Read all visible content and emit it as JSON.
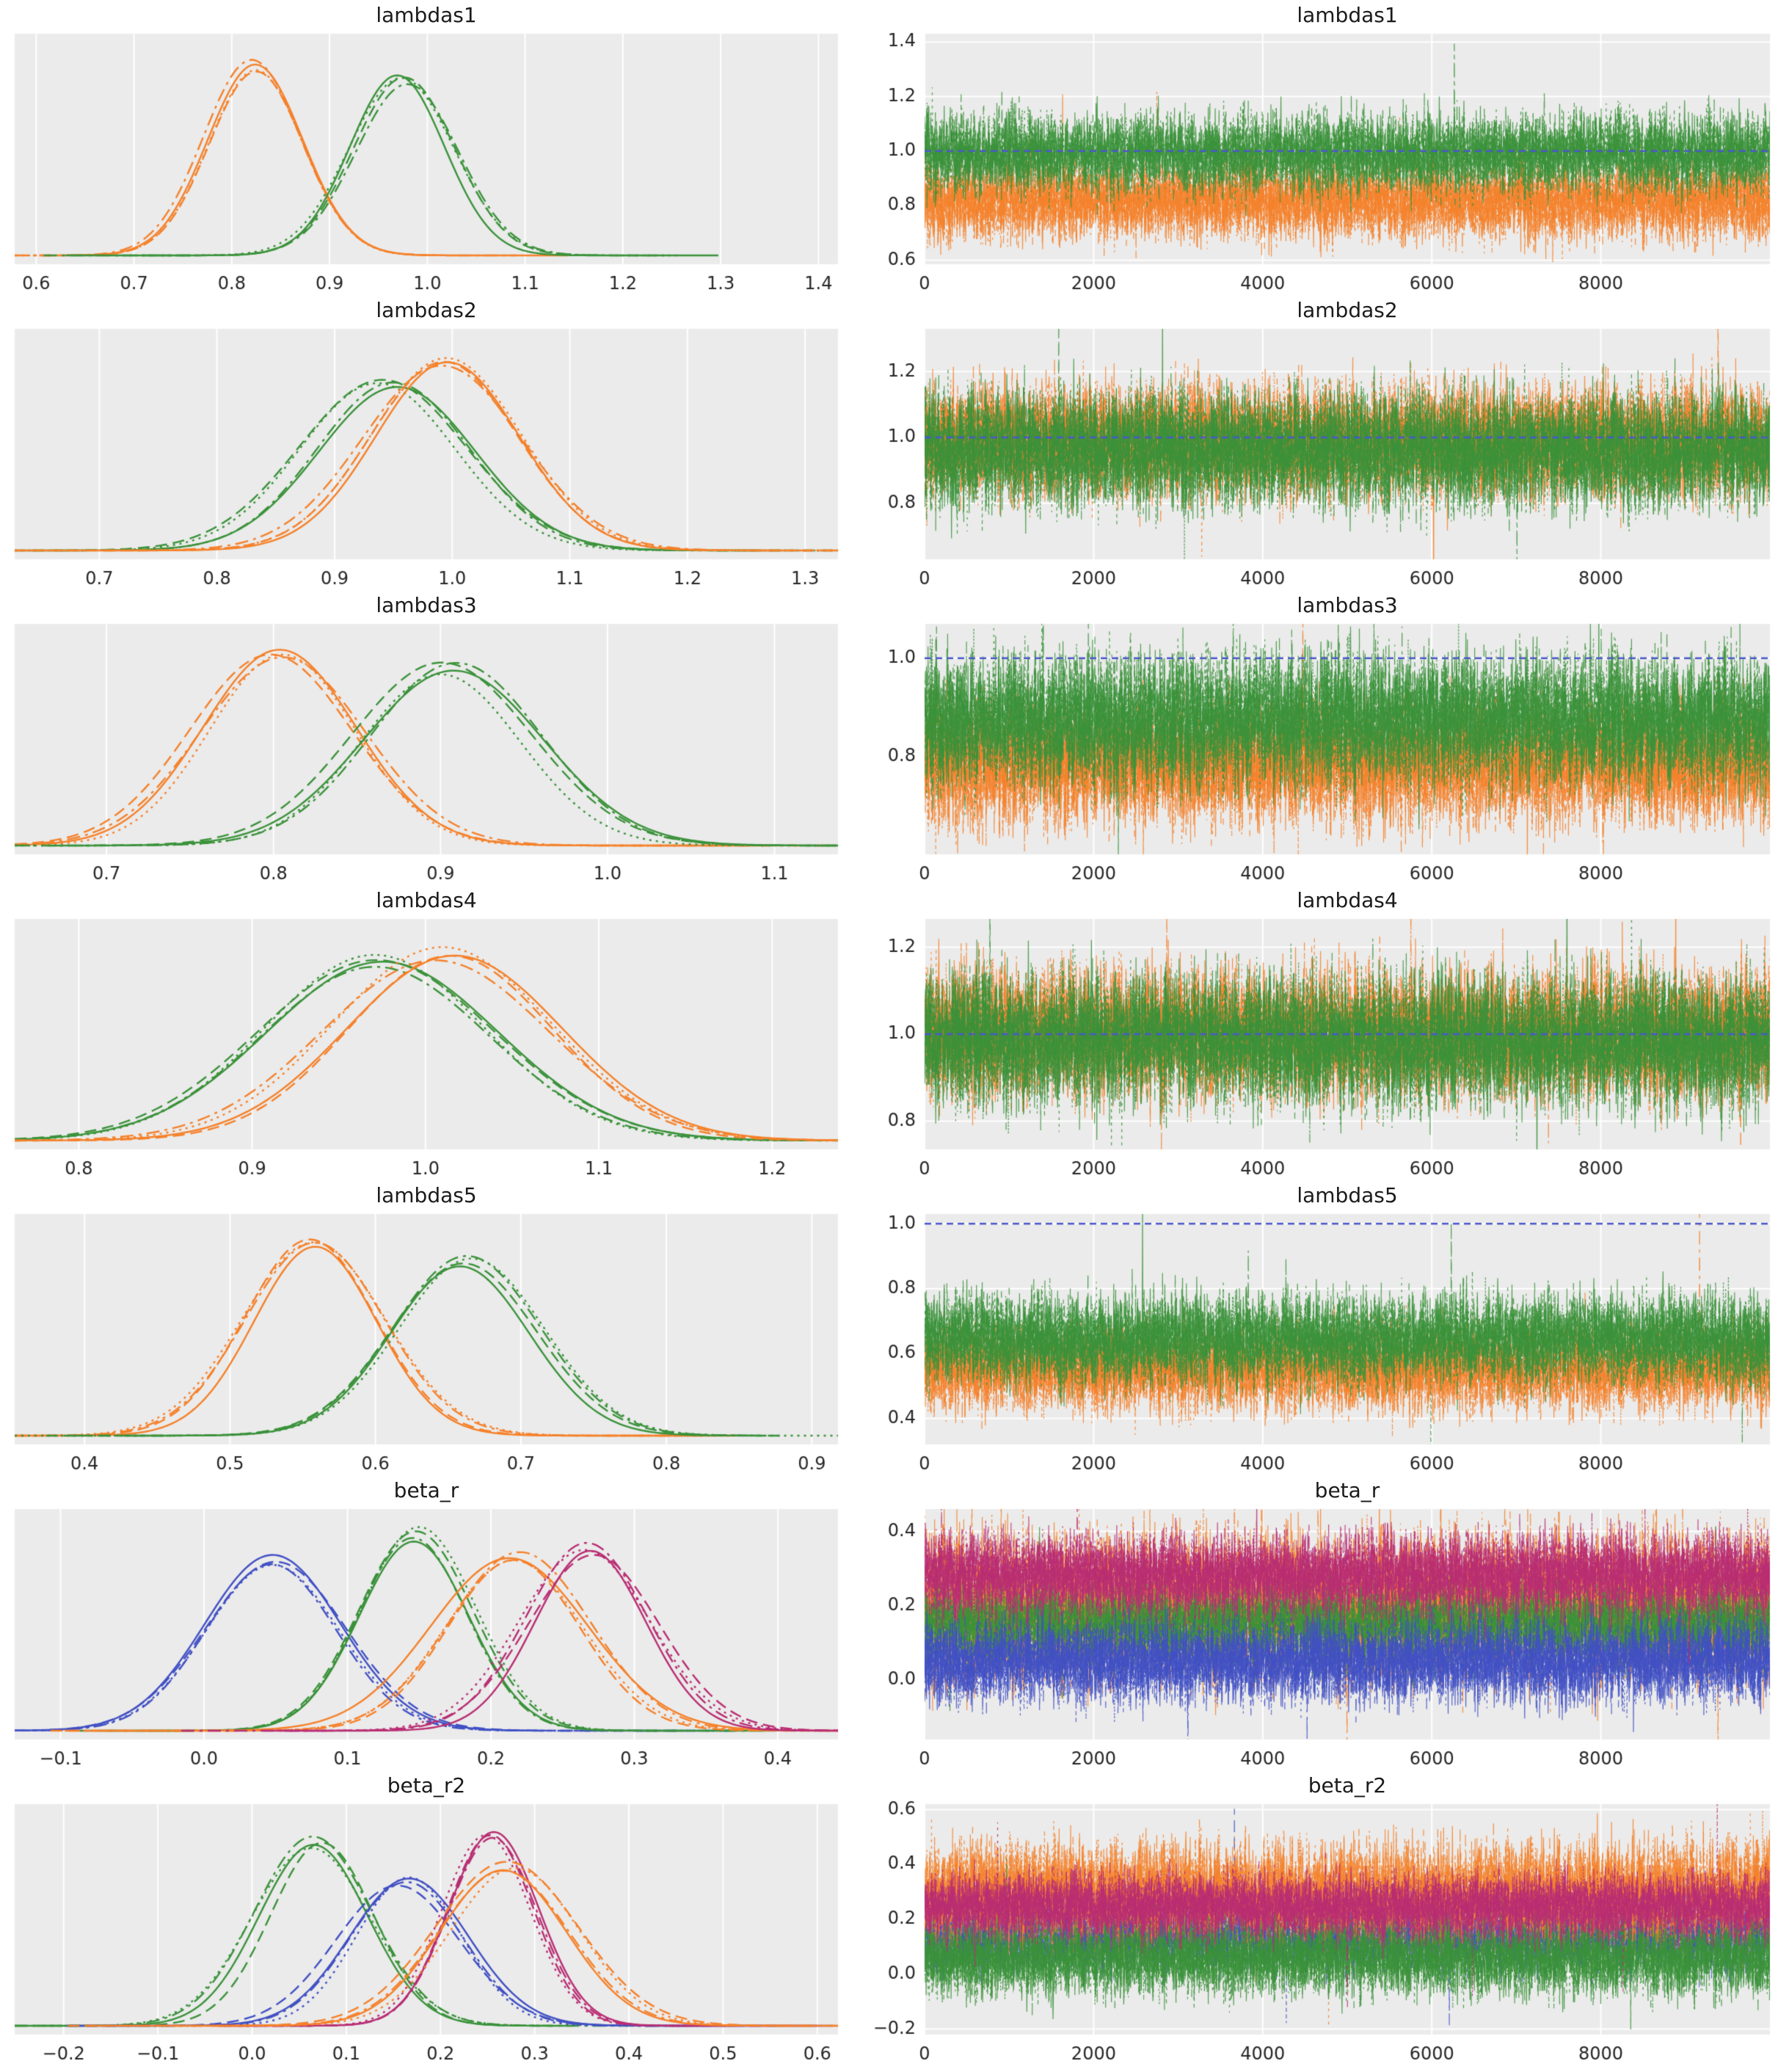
{
  "style": {
    "panel_bg": "#ebebeb",
    "grid_color": "#ffffff",
    "tick_color": "#262626",
    "title_color": "#1b1b1b",
    "colors": {
      "orange": "#f5812a",
      "green": "#3a923a",
      "blue": "#4150c4",
      "magenta": "#b92d73"
    },
    "refline_color": "#4a58c9"
  },
  "chart_data": [
    {
      "name": "lambdas1",
      "kde": {
        "type": "kde",
        "title": "lambdas1",
        "xlim": [
          0.578,
          1.42
        ],
        "xticks": [
          0.6,
          0.7,
          0.8,
          0.9,
          1.0,
          1.1,
          1.2,
          1.3,
          1.4
        ],
        "xtick_labels": [
          "0.6",
          "0.7",
          "0.8",
          "0.9",
          "1.0",
          "1.1",
          "1.2",
          "1.3",
          "1.4"
        ],
        "series": [
          {
            "color": "orange",
            "mean": 0.82,
            "sd": 0.047,
            "peak": 0.96
          },
          {
            "color": "green",
            "mean": 0.975,
            "sd": 0.051,
            "peak": 0.9
          }
        ]
      },
      "trace": {
        "type": "trace",
        "title": "lambdas1",
        "xmax": 10000,
        "xticks": [
          0,
          2000,
          4000,
          6000,
          8000
        ],
        "xtick_labels": [
          "0",
          "2000",
          "4000",
          "6000",
          "8000"
        ],
        "ylim": [
          0.585,
          1.43
        ],
        "yticks": [
          0.6,
          0.8,
          1.0,
          1.2,
          1.4
        ],
        "ytick_labels": [
          "0.6",
          "0.8",
          "1.0",
          "1.2",
          "1.4"
        ],
        "series": [
          {
            "color": "orange",
            "mean": 0.82,
            "sd": 0.072
          },
          {
            "color": "green",
            "mean": 0.99,
            "sd": 0.072
          }
        ],
        "refline": {
          "y": 1.0,
          "dash": [
            9,
            6
          ]
        }
      }
    },
    {
      "name": "lambdas2",
      "kde": {
        "type": "kde",
        "title": "lambdas2",
        "xlim": [
          0.628,
          1.328
        ],
        "xticks": [
          0.7,
          0.8,
          0.9,
          1.0,
          1.1,
          1.2,
          1.3
        ],
        "xtick_labels": [
          "0.7",
          "0.8",
          "0.9",
          "1.0",
          "1.1",
          "1.2",
          "1.3"
        ],
        "series": [
          {
            "color": "green",
            "mean": 0.945,
            "sd": 0.072,
            "peak": 0.84
          },
          {
            "color": "orange",
            "mean": 0.995,
            "sd": 0.063,
            "peak": 0.97
          }
        ]
      },
      "trace": {
        "type": "trace",
        "title": "lambdas2",
        "xmax": 10000,
        "xticks": [
          0,
          2000,
          4000,
          6000,
          8000
        ],
        "xtick_labels": [
          "0",
          "2000",
          "4000",
          "6000",
          "8000"
        ],
        "ylim": [
          0.63,
          1.33
        ],
        "yticks": [
          0.8,
          1.0,
          1.2
        ],
        "ytick_labels": [
          "0.8",
          "1.0",
          "1.2"
        ],
        "series": [
          {
            "color": "orange",
            "mean": 0.99,
            "sd": 0.085
          },
          {
            "color": "green",
            "mean": 0.96,
            "sd": 0.088
          }
        ],
        "refline": {
          "y": 1.0,
          "dash": [
            9,
            6
          ]
        }
      }
    },
    {
      "name": "lambdas3",
      "kde": {
        "type": "kde",
        "title": "lambdas3",
        "xlim": [
          0.645,
          1.138
        ],
        "xticks": [
          0.7,
          0.8,
          0.9,
          1.0,
          1.1
        ],
        "xtick_labels": [
          "0.7",
          "0.8",
          "0.9",
          "1.0",
          "1.1"
        ],
        "series": [
          {
            "color": "orange",
            "mean": 0.8,
            "sd": 0.047,
            "peak": 0.96
          },
          {
            "color": "green",
            "mean": 0.905,
            "sd": 0.05,
            "peak": 0.9
          }
        ]
      },
      "trace": {
        "type": "trace",
        "title": "lambdas3",
        "xmax": 10000,
        "xticks": [
          0,
          2000,
          4000,
          6000,
          8000
        ],
        "xtick_labels": [
          "0",
          "2000",
          "4000",
          "6000",
          "8000"
        ],
        "ylim": [
          0.6,
          1.07
        ],
        "yticks": [
          0.8,
          1.0
        ],
        "ytick_labels": [
          "0.8",
          "1.0"
        ],
        "series": [
          {
            "color": "orange",
            "mean": 0.785,
            "sd": 0.062
          },
          {
            "color": "green",
            "mean": 0.875,
            "sd": 0.068
          }
        ],
        "refline": {
          "y": 1.0,
          "dash": [
            9,
            6
          ]
        }
      }
    },
    {
      "name": "lambdas4",
      "kde": {
        "type": "kde",
        "title": "lambdas4",
        "xlim": [
          0.763,
          1.238
        ],
        "xticks": [
          0.8,
          0.9,
          1.0,
          1.1,
          1.2
        ],
        "xtick_labels": [
          "0.8",
          "0.9",
          "1.0",
          "1.1",
          "1.2"
        ],
        "series": [
          {
            "color": "green",
            "mean": 0.972,
            "sd": 0.068,
            "peak": 0.92
          },
          {
            "color": "orange",
            "mean": 1.012,
            "sd": 0.061,
            "peak": 0.95
          }
        ]
      },
      "trace": {
        "type": "trace",
        "title": "lambdas4",
        "xmax": 10000,
        "xticks": [
          0,
          2000,
          4000,
          6000,
          8000
        ],
        "xtick_labels": [
          "0",
          "2000",
          "4000",
          "6000",
          "8000"
        ],
        "ylim": [
          0.735,
          1.265
        ],
        "yticks": [
          0.8,
          1.0,
          1.2
        ],
        "ytick_labels": [
          "0.8",
          "1.0",
          "1.2"
        ],
        "series": [
          {
            "color": "orange",
            "mean": 1.0,
            "sd": 0.073
          },
          {
            "color": "green",
            "mean": 0.985,
            "sd": 0.076
          }
        ],
        "refline": {
          "y": 1.0,
          "dash": [
            9,
            6
          ]
        }
      }
    },
    {
      "name": "lambdas5",
      "kde": {
        "type": "kde",
        "title": "lambdas5",
        "xlim": [
          0.352,
          0.918
        ],
        "xticks": [
          0.4,
          0.5,
          0.6,
          0.7,
          0.8,
          0.9
        ],
        "xtick_labels": [
          "0.4",
          "0.5",
          "0.6",
          "0.7",
          "0.8",
          "0.9"
        ],
        "series": [
          {
            "color": "orange",
            "mean": 0.553,
            "sd": 0.046,
            "peak": 0.97
          },
          {
            "color": "green",
            "mean": 0.662,
            "sd": 0.051,
            "peak": 0.89
          }
        ]
      },
      "trace": {
        "type": "trace",
        "title": "lambdas5",
        "xmax": 10000,
        "xticks": [
          0,
          2000,
          4000,
          6000,
          8000
        ],
        "xtick_labels": [
          "0",
          "2000",
          "4000",
          "6000",
          "8000"
        ],
        "ylim": [
          0.32,
          1.03
        ],
        "yticks": [
          0.4,
          0.6,
          0.8,
          1.0
        ],
        "ytick_labels": [
          "0.4",
          "0.6",
          "0.8",
          "1.0"
        ],
        "series": [
          {
            "color": "orange",
            "mean": 0.553,
            "sd": 0.065
          },
          {
            "color": "green",
            "mean": 0.645,
            "sd": 0.07
          }
        ],
        "refline": {
          "y": 1.0,
          "dash": [
            9,
            6
          ]
        }
      }
    },
    {
      "name": "beta_r",
      "kde": {
        "type": "kde",
        "title": "beta_r",
        "xlim": [
          -0.132,
          0.442
        ],
        "xticks": [
          -0.1,
          0.0,
          0.1,
          0.2,
          0.3,
          0.4
        ],
        "xtick_labels": [
          "−0.1",
          "0.0",
          "0.1",
          "0.2",
          "0.3",
          "0.4"
        ],
        "series": [
          {
            "color": "blue",
            "mean": 0.048,
            "sd": 0.046,
            "peak": 0.88
          },
          {
            "color": "green",
            "mean": 0.148,
            "sd": 0.041,
            "peak": 1.0
          },
          {
            "color": "orange",
            "mean": 0.218,
            "sd": 0.05,
            "peak": 0.88
          },
          {
            "color": "magenta",
            "mean": 0.27,
            "sd": 0.042,
            "peak": 0.93
          }
        ]
      },
      "trace": {
        "type": "trace",
        "title": "beta_r",
        "xmax": 10000,
        "xticks": [
          0,
          2000,
          4000,
          6000,
          8000
        ],
        "xtick_labels": [
          "0",
          "2000",
          "4000",
          "6000",
          "8000"
        ],
        "ylim": [
          -0.16,
          0.46
        ],
        "yticks": [
          0.0,
          0.2,
          0.4
        ],
        "ytick_labels": [
          "0.0",
          "0.2",
          "0.4"
        ],
        "series": [
          {
            "color": "orange",
            "mean": 0.2,
            "sd": 0.095
          },
          {
            "color": "green",
            "mean": 0.15,
            "sd": 0.055
          },
          {
            "color": "blue",
            "mean": 0.05,
            "sd": 0.055
          },
          {
            "color": "magenta",
            "mean": 0.285,
            "sd": 0.055
          }
        ],
        "refline": null
      }
    },
    {
      "name": "beta_r2",
      "kde": {
        "type": "kde",
        "title": "beta_r2",
        "xlim": [
          -0.252,
          0.622
        ],
        "xticks": [
          -0.2,
          -0.1,
          0.0,
          0.1,
          0.2,
          0.3,
          0.4,
          0.5,
          0.6
        ],
        "xtick_labels": [
          "−0.2",
          "−0.1",
          "0.0",
          "0.1",
          "0.2",
          "0.3",
          "0.4",
          "0.5",
          "0.6"
        ],
        "series": [
          {
            "color": "green",
            "mean": 0.068,
            "sd": 0.058,
            "peak": 0.94
          },
          {
            "color": "blue",
            "mean": 0.16,
            "sd": 0.062,
            "peak": 0.73
          },
          {
            "color": "magenta",
            "mean": 0.252,
            "sd": 0.05,
            "peak": 0.97
          },
          {
            "color": "orange",
            "mean": 0.272,
            "sd": 0.07,
            "peak": 0.82
          }
        ]
      },
      "trace": {
        "type": "trace",
        "title": "beta_r2",
        "xmax": 10000,
        "xticks": [
          0,
          2000,
          4000,
          6000,
          8000
        ],
        "xtick_labels": [
          "0",
          "2000",
          "4000",
          "6000",
          "8000"
        ],
        "ylim": [
          -0.22,
          0.62
        ],
        "yticks": [
          -0.2,
          0.0,
          0.2,
          0.4,
          0.6
        ],
        "ytick_labels": [
          "−0.2",
          "0.0",
          "0.2",
          "0.4",
          "0.6"
        ],
        "series": [
          {
            "color": "blue",
            "mean": 0.15,
            "sd": 0.065
          },
          {
            "color": "orange",
            "mean": 0.29,
            "sd": 0.095
          },
          {
            "color": "green",
            "mean": 0.06,
            "sd": 0.068
          },
          {
            "color": "magenta",
            "mean": 0.25,
            "sd": 0.058
          }
        ],
        "refline": null
      }
    }
  ]
}
